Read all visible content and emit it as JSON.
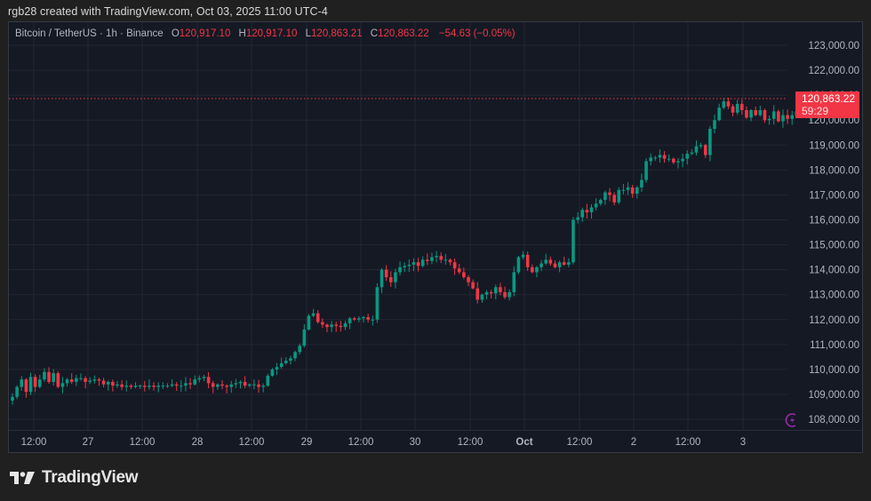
{
  "credit": "rgb28 created with TradingView.com, Oct 03, 2025 11:00 UTC-4",
  "legend": {
    "symbol": "Bitcoin / TetherUS · 1h · Binance",
    "o_label": "O",
    "o_value": "120,917.10",
    "h_label": "H",
    "h_value": "120,917.10",
    "l_label": "L",
    "l_value": "120,863.21",
    "c_label": "C",
    "c_value": "120,863.22",
    "change": "−54.63 (−0.05%)"
  },
  "price_tag": {
    "price": "120,863.22",
    "countdown": "59:29"
  },
  "brand": {
    "name": "TradingView"
  },
  "colors": {
    "up": "#089981",
    "down": "#f23645",
    "grid": "#242733",
    "bg": "#151924",
    "last_price": "#f23645",
    "event_icon": "#9c27b0"
  },
  "icons": {
    "event": "lightning-circle-icon",
    "logo": "tradingview-logo-icon"
  },
  "chart_data": {
    "type": "candlestick",
    "title": "Bitcoin / TetherUS · 1h · Binance",
    "interval": "1h",
    "ylim": [
      107500,
      123500
    ],
    "y_ticks": [
      "123,000.00",
      "122,000.00",
      "121,000.00",
      "120,000.00",
      "119,000.00",
      "118,000.00",
      "117,000.00",
      "116,000.00",
      "115,000.00",
      "114,000.00",
      "113,000.00",
      "112,000.00",
      "111,000.00",
      "110,000.00",
      "109,000.00",
      "108,000.00"
    ],
    "x_ticks": [
      {
        "label": "12:00",
        "x": 38
      },
      {
        "label": "27",
        "x": 99
      },
      {
        "label": "12:00",
        "x": 160
      },
      {
        "label": "28",
        "x": 222
      },
      {
        "label": "12:00",
        "x": 283
      },
      {
        "label": "29",
        "x": 345
      },
      {
        "label": "12:00",
        "x": 406
      },
      {
        "label": "30",
        "x": 467
      },
      {
        "label": "12:00",
        "x": 529
      },
      {
        "label": "Oct",
        "x": 590,
        "bold": true
      },
      {
        "label": "12:00",
        "x": 652
      },
      {
        "label": "2",
        "x": 713
      },
      {
        "label": "12:00",
        "x": 774
      },
      {
        "label": "3",
        "x": 836
      }
    ],
    "last_price": 120863.22,
    "closes": [
      108900,
      109300,
      109600,
      109100,
      109700,
      109300,
      109600,
      109900,
      109500,
      109850,
      109300,
      109450,
      109600,
      109500,
      109650,
      109650,
      109500,
      109550,
      109600,
      109550,
      109400,
      109500,
      109350,
      109400,
      109300,
      109350,
      109300,
      109350,
      109350,
      109300,
      109350,
      109300,
      109350,
      109350,
      109350,
      109400,
      109350,
      109350,
      109450,
      109400,
      109600,
      109650,
      109700,
      109450,
      109300,
      109400,
      109350,
      109300,
      109400,
      109450,
      109500,
      109350,
      109400,
      109400,
      109300,
      109350,
      109750,
      110000,
      110100,
      110250,
      110350,
      110450,
      110700,
      110950,
      111600,
      112150,
      112250,
      111900,
      111800,
      111700,
      111800,
      111750,
      111700,
      111850,
      112050,
      112000,
      112050,
      112100,
      112000,
      112000,
      113300,
      114000,
      113700,
      113500,
      113900,
      114100,
      114150,
      114200,
      114300,
      114150,
      114400,
      114350,
      114500,
      114550,
      114400,
      114400,
      114300,
      114050,
      113900,
      113700,
      113500,
      113250,
      112800,
      113000,
      113100,
      113050,
      113300,
      113100,
      112900,
      113100,
      113900,
      114500,
      114600,
      114100,
      113900,
      114100,
      114250,
      114400,
      114250,
      114100,
      114300,
      114200,
      114300,
      116000,
      116100,
      116400,
      116300,
      116500,
      116650,
      116800,
      117100,
      117000,
      116700,
      117200,
      117200,
      117300,
      117050,
      117300,
      117600,
      118350,
      118500,
      118500,
      118600,
      118450,
      118450,
      118300,
      118350,
      118450,
      118650,
      118700,
      118950,
      119000,
      118600,
      119650,
      120000,
      120500,
      120750,
      120550,
      120300,
      120650,
      120400,
      120100,
      120400,
      120200,
      120400,
      120000,
      120050,
      120350,
      119950,
      120200,
      120050,
      120200,
      120350,
      120300,
      120200,
      120650,
      120917,
      120863
    ],
    "x_start": 14,
    "x_step": 5.13
  }
}
